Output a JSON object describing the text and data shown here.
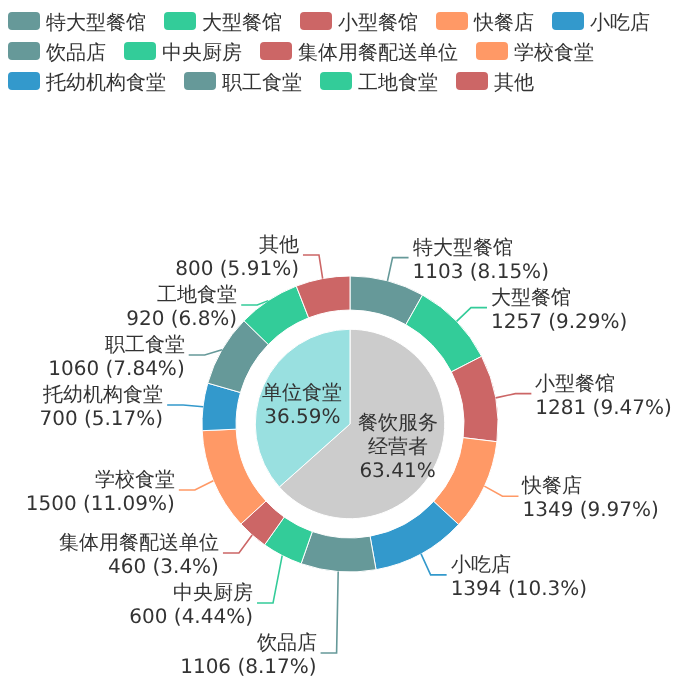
{
  "chart_data": [
    {
      "type": "pie",
      "categories": [
        "餐饮服务经营者",
        "单位食堂"
      ],
      "values": [
        63.41,
        36.59
      ],
      "colors": [
        "#cccccc",
        "#99e0e0"
      ],
      "value_labels": [
        "63.41%",
        "36.59%"
      ]
    },
    {
      "type": "donut",
      "categories": [
        "特大型餐馆",
        "大型餐馆",
        "小型餐馆",
        "快餐店",
        "小吃店",
        "饮品店",
        "中央厨房",
        "集体用餐配送单位",
        "学校食堂",
        "托幼机构食堂",
        "职工食堂",
        "工地食堂",
        "其他"
      ],
      "values": [
        1103,
        1257,
        1281,
        1349,
        1394,
        1106,
        600,
        460,
        1500,
        700,
        1060,
        920,
        800
      ],
      "colors": [
        "#669999",
        "#33cc99",
        "#cc6666",
        "#ff9966",
        "#3399cc",
        "#669999",
        "#33cc99",
        "#cc6666",
        "#ff9966",
        "#3399cc",
        "#669999",
        "#33cc99",
        "#cc6666"
      ],
      "value_labels": [
        "1103 (8.15%)",
        "1257 (9.29%)",
        "1281 (9.47%)",
        "1349 (9.97%)",
        "1394 (10.3%)",
        "1106 (8.17%)",
        "600 (4.44%)",
        "460 (3.4%)",
        "1500 (11.09%)",
        "700 (5.17%)",
        "1060 (7.84%)",
        "920 (6.8%)",
        "800 (5.91%)"
      ],
      "legend": "top"
    }
  ]
}
